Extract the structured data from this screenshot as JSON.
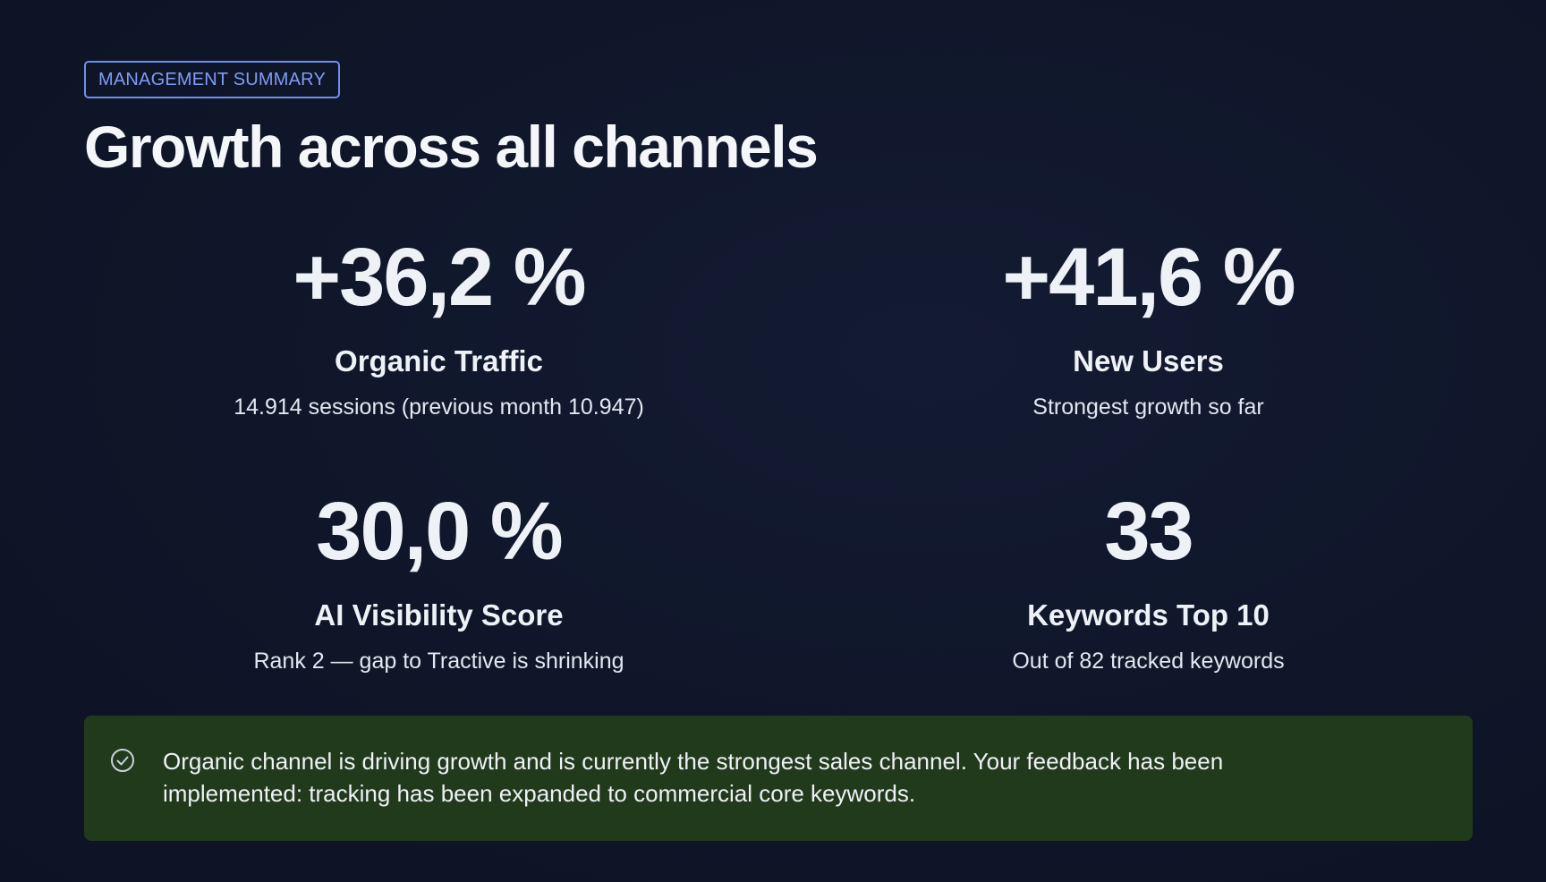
{
  "badge": "MANAGEMENT SUMMARY",
  "title": "Growth across all channels",
  "kpis": [
    {
      "value": "+36,2 %",
      "label": "Organic Traffic",
      "sub": "14.914 sessions (previous month 10.947)"
    },
    {
      "value": "+41,6 %",
      "label": "New Users",
      "sub": "Strongest growth so far"
    },
    {
      "value": "30,0 %",
      "label": "AI Visibility Score",
      "sub": "Rank 2 — gap to Tractive is shrinking"
    },
    {
      "value": "33",
      "label": "Keywords Top 10",
      "sub": "Out of 82 tracked keywords"
    }
  ],
  "callout": {
    "icon": "check-circle-icon",
    "text": "Organic channel is driving growth and is currently the strongest sales channel. Your feedback has been implemented: tracking has been expanded to commercial core keywords."
  },
  "colors": {
    "background": "#0f1629",
    "accent": "#7f9cf5",
    "callout_bg": "#223a1c",
    "text": "#eef1f6"
  }
}
